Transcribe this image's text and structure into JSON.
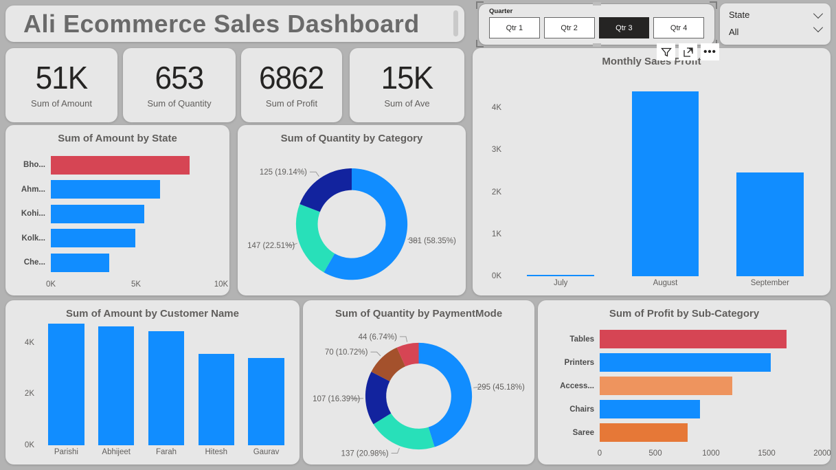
{
  "app": {
    "title": "Ali Ecommerce Sales Dashboard"
  },
  "colors": {
    "canvas": "#b3b3b3",
    "card": "#e7e7e7",
    "blue": "#118DFF",
    "navy": "#12239E",
    "teal": "#28E0B9",
    "red": "#D64554",
    "brown": "#A4512C",
    "salmon": "#EE945E",
    "orange": "#E67837",
    "selected_button": "#252423",
    "axis_text": "#605e5c"
  },
  "slicer": {
    "label": "Quarter",
    "options": [
      {
        "label": "Qtr 1",
        "selected": false
      },
      {
        "label": "Qtr 2",
        "selected": false
      },
      {
        "label": "Qtr 3",
        "selected": true
      },
      {
        "label": "Qtr 4",
        "selected": false
      }
    ]
  },
  "state_filter": {
    "label": "State",
    "value": "All"
  },
  "visual_header": {
    "icons": [
      "filter-icon",
      "focus-mode-icon",
      "more-options-icon"
    ]
  },
  "kpis": [
    {
      "value": "51K",
      "label": "Sum of Amount"
    },
    {
      "value": "653",
      "label": "Sum of Quantity"
    },
    {
      "value": "6862",
      "label": "Sum of Profit"
    },
    {
      "value": "15K",
      "label": "Sum of Ave"
    }
  ],
  "chart_data": [
    {
      "type": "bar",
      "orientation": "horizontal",
      "title": "Sum of Amount by State",
      "categories": [
        "Bho...",
        "Ahm...",
        "Kohi...",
        "Kolk...",
        "Che..."
      ],
      "values": [
        8160,
        6400,
        5480,
        4940,
        3430
      ],
      "colors": [
        "#D64554",
        "#118DFF",
        "#118DFF",
        "#118DFF",
        "#118DFF"
      ],
      "xlim": [
        0,
        10000
      ],
      "xticks": [
        {
          "label": "0K",
          "value": 0
        },
        {
          "label": "5K",
          "value": 5000
        },
        {
          "label": "10K",
          "value": 10000
        }
      ]
    },
    {
      "type": "donut",
      "title": "Sum of Quantity by Category",
      "slices": [
        {
          "label": "381 (58.35%)",
          "value": 381,
          "pct": 58.35,
          "color": "#118DFF"
        },
        {
          "label": "147 (22.51%)",
          "value": 147,
          "pct": 22.51,
          "color": "#28E0B9"
        },
        {
          "label": "125 (19.14%)",
          "value": 125,
          "pct": 19.14,
          "color": "#12239E"
        }
      ]
    },
    {
      "type": "column",
      "title": "Monthly Sales Profit",
      "categories": [
        "July",
        "August",
        "September"
      ],
      "values": [
        30,
        4400,
        2470
      ],
      "ylim": [
        0,
        4900
      ],
      "yticks": [
        {
          "label": "0K",
          "value": 0
        },
        {
          "label": "1K",
          "value": 1000
        },
        {
          "label": "2K",
          "value": 2000
        },
        {
          "label": "3K",
          "value": 3000
        },
        {
          "label": "4K",
          "value": 4000
        }
      ]
    },
    {
      "type": "column",
      "title": "Sum of Amount by Customer Name",
      "categories": [
        "Parishi",
        "Abhijeet",
        "Farah",
        "Hitesh",
        "Gaurav"
      ],
      "values": [
        4750,
        4640,
        4450,
        3560,
        3400
      ],
      "ylim": [
        0,
        4800
      ],
      "yticks": [
        {
          "label": "0K",
          "value": 0
        },
        {
          "label": "2K",
          "value": 2000
        },
        {
          "label": "4K",
          "value": 4000
        }
      ]
    },
    {
      "type": "donut",
      "title": "Sum of Quantity by PaymentMode",
      "slices": [
        {
          "label": "295 (45.18%)",
          "value": 295,
          "pct": 45.18,
          "color": "#118DFF"
        },
        {
          "label": "137 (20.98%)",
          "value": 137,
          "pct": 20.98,
          "color": "#28E0B9"
        },
        {
          "label": "107 (16.39%)",
          "value": 107,
          "pct": 16.39,
          "color": "#12239E"
        },
        {
          "label": "70 (10.72%)",
          "value": 70,
          "pct": 10.72,
          "color": "#A4512C"
        },
        {
          "label": "44 (6.74%)",
          "value": 44,
          "pct": 6.74,
          "color": "#D64554"
        }
      ]
    },
    {
      "type": "bar",
      "orientation": "horizontal",
      "title": "Sum of Profit by Sub-Category",
      "categories": [
        "Tables",
        "Printers",
        "Access...",
        "Chairs",
        "Saree"
      ],
      "values": [
        1680,
        1540,
        1190,
        900,
        790
      ],
      "colors": [
        "#D64554",
        "#118DFF",
        "#EE945E",
        "#118DFF",
        "#E67837"
      ],
      "xlim": [
        0,
        2000
      ],
      "xticks": [
        {
          "label": "0",
          "value": 0
        },
        {
          "label": "500",
          "value": 500
        },
        {
          "label": "1000",
          "value": 1000
        },
        {
          "label": "1500",
          "value": 1500
        },
        {
          "label": "2000",
          "value": 2000
        }
      ]
    }
  ]
}
